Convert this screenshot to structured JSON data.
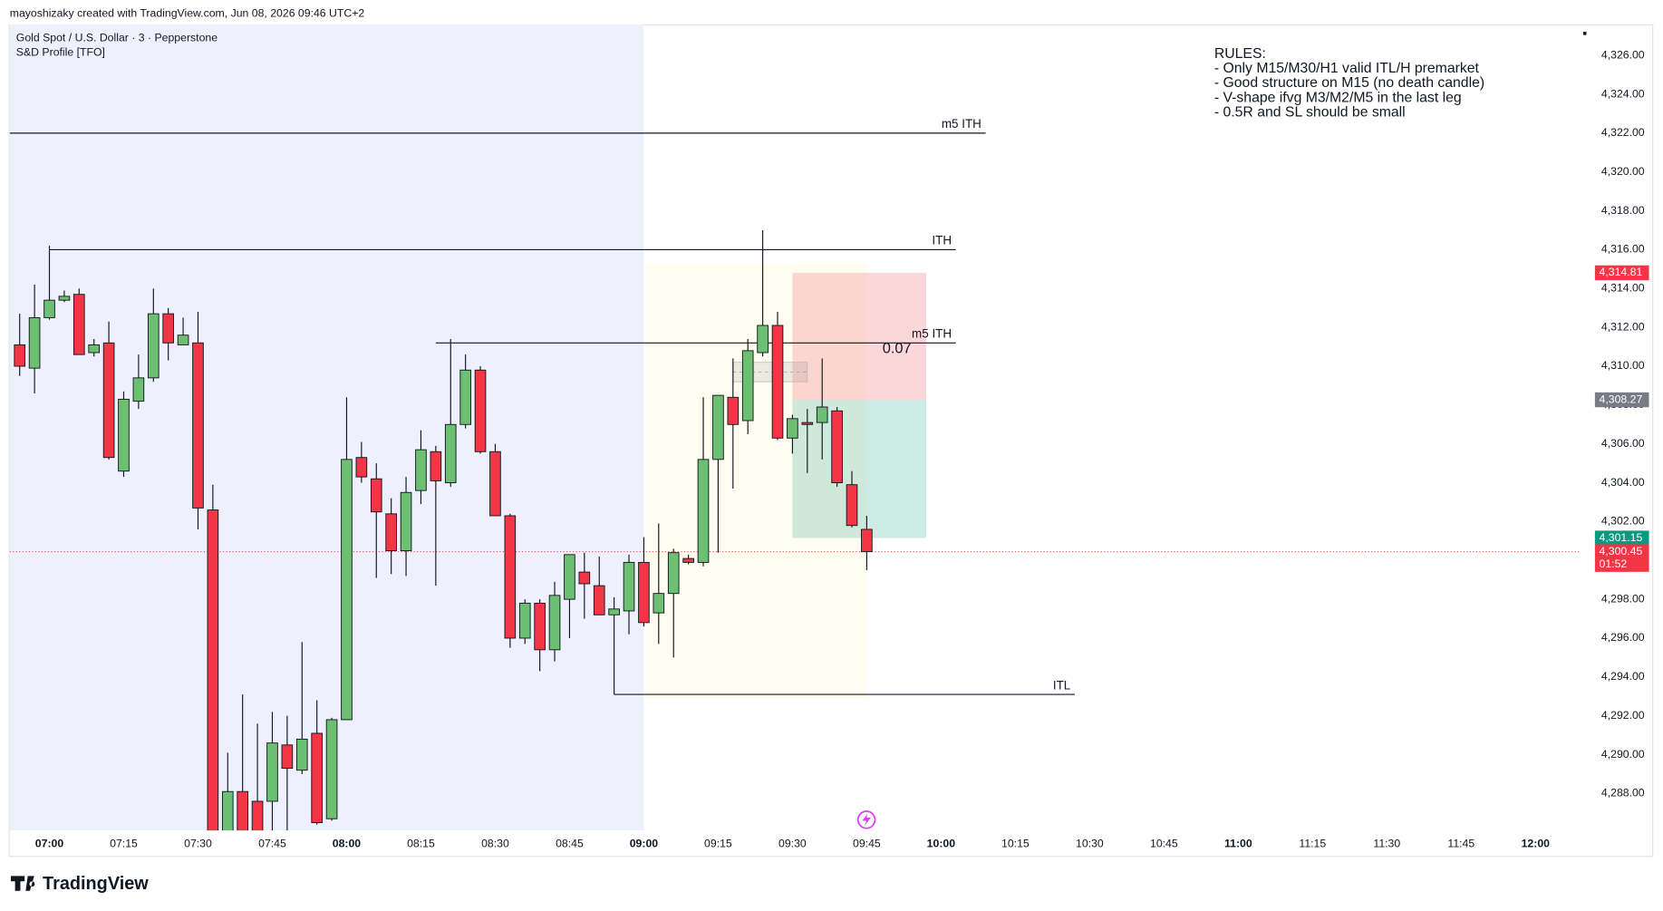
{
  "header": {
    "credit": "mayoshizaky created with TradingView.com, Jun 08, 2026 09:46 UTC+2",
    "symbol": "Gold Spot / U.S. Dollar · 3 · Pepperstone",
    "indicator": "S&D Profile [TFO]"
  },
  "footer": {
    "logo": "TradingView"
  },
  "chart_data": {
    "type": "candlestick",
    "x": [
      "06:54",
      "06:57",
      "07:00",
      "07:03",
      "07:06",
      "07:09",
      "07:12",
      "07:15",
      "07:18",
      "07:21",
      "07:24",
      "07:27",
      "07:30",
      "07:33",
      "07:36",
      "07:39",
      "07:42",
      "07:45",
      "07:48",
      "07:51",
      "07:54",
      "07:57",
      "08:00",
      "08:03",
      "08:06",
      "08:09",
      "08:12",
      "08:15",
      "08:18",
      "08:21",
      "08:24",
      "08:27",
      "08:30",
      "08:33",
      "08:36",
      "08:39",
      "08:42",
      "08:45",
      "08:48",
      "08:51",
      "08:54",
      "08:57",
      "09:00",
      "09:03",
      "09:06",
      "09:09",
      "09:12",
      "09:15",
      "09:18",
      "09:21",
      "09:24",
      "09:27",
      "09:30",
      "09:33",
      "09:36",
      "09:39",
      "09:42",
      "09:45"
    ],
    "open": [
      4311.1,
      4309.9,
      4312.5,
      4313.4,
      4313.7,
      4310.7,
      4311.2,
      4304.6,
      4308.2,
      4309.4,
      4312.7,
      4311.1,
      4311.2,
      4302.6,
      4285.6,
      4288.1,
      4287.6,
      4287.6,
      4290.5,
      4289.2,
      4291.1,
      4286.7,
      4291.8,
      4305.3,
      4304.2,
      4302.4,
      4300.5,
      4303.6,
      4305.6,
      4304.0,
      4307.0,
      4309.8,
      4305.6,
      4302.3,
      4296.0,
      4297.8,
      4295.4,
      4298.0,
      4299.4,
      4298.7,
      4297.2,
      4297.4,
      4299.9,
      4297.3,
      4298.3,
      4300.1,
      4299.9,
      4305.2,
      4308.4,
      4307.2,
      4310.7,
      4312.1,
      4306.3,
      4307.1,
      4307.1,
      4307.7,
      4303.9,
      4301.6
    ],
    "high": [
      4312.7,
      4314.2,
      4316.2,
      4313.9,
      4314.0,
      4311.4,
      4312.3,
      4308.7,
      4310.6,
      4314.0,
      4313.0,
      4312.5,
      4312.8,
      4303.9,
      4290.1,
      4293.1,
      4291.6,
      4292.2,
      4292.0,
      4295.8,
      4292.8,
      4291.9,
      4308.4,
      4306.1,
      4305.0,
      4303.2,
      4304.3,
      4306.7,
      4305.9,
      4311.4,
      4310.6,
      4310.0,
      4306.0,
      4302.4,
      4298.0,
      4298.0,
      4298.9,
      4300.3,
      4300.4,
      4300.2,
      4298.1,
      4300.3,
      4301.2,
      4301.9,
      4300.6,
      4300.3,
      4308.4,
      4308.5,
      4310.4,
      4311.4,
      4317.0,
      4312.8,
      4307.5,
      4307.8,
      4310.4,
      4307.9,
      4304.6,
      4302.3
    ],
    "low": [
      4309.5,
      4308.6,
      4312.4,
      4313.3,
      4310.6,
      4310.5,
      4305.2,
      4304.3,
      4307.8,
      4309.2,
      4310.3,
      4311.1,
      4301.6,
      4285.5,
      4285.5,
      4285.5,
      4285.9,
      4286.0,
      4286.0,
      4289.0,
      4286.4,
      4286.6,
      4291.8,
      4304.0,
      4299.1,
      4299.3,
      4299.2,
      4302.9,
      4298.7,
      4303.8,
      4306.8,
      4305.5,
      4302.3,
      4295.5,
      4295.7,
      4294.3,
      4294.8,
      4296.0,
      4297.0,
      4297.2,
      4293.1,
      4296.2,
      4296.6,
      4295.7,
      4295.0,
      4299.8,
      4299.7,
      4300.4,
      4303.7,
      4306.5,
      4310.5,
      4306.2,
      4305.5,
      4304.5,
      4305.2,
      4303.8,
      4301.7,
      4299.5
    ],
    "close": [
      4310.0,
      4312.5,
      4313.4,
      4313.6,
      4310.6,
      4311.1,
      4305.3,
      4308.3,
      4309.4,
      4312.7,
      4311.2,
      4311.6,
      4302.7,
      4285.7,
      4288.1,
      4285.6,
      4286.0,
      4290.6,
      4289.3,
      4290.8,
      4286.5,
      4291.8,
      4305.2,
      4304.3,
      4302.5,
      4300.5,
      4303.5,
      4305.7,
      4304.1,
      4307.0,
      4309.8,
      4305.6,
      4302.3,
      4296.0,
      4297.8,
      4295.4,
      4298.2,
      4300.3,
      4298.8,
      4297.2,
      4297.5,
      4299.9,
      4296.8,
      4298.3,
      4300.4,
      4299.9,
      4305.2,
      4308.5,
      4307.0,
      4310.8,
      4312.1,
      4306.3,
      4307.3,
      4307.0,
      4307.9,
      4304.0,
      4301.8,
      4300.45
    ],
    "up_color": "#6dbf72",
    "down_color": "#f23645",
    "xlim": [
      "06:52",
      "12:09"
    ],
    "xticks": [
      "07:00",
      "07:15",
      "07:30",
      "07:45",
      "08:00",
      "08:15",
      "08:30",
      "08:45",
      "09:00",
      "09:15",
      "09:30",
      "09:45",
      "10:00",
      "10:15",
      "10:30",
      "10:45",
      "11:00",
      "11:15",
      "11:30",
      "11:45",
      "12:00"
    ],
    "xticks_bold": [
      "07:00",
      "08:00",
      "09:00",
      "10:00",
      "11:00",
      "12:00"
    ],
    "ylim": [
      4286.1,
      4327.6
    ],
    "yticks": [
      {
        "value": 4288,
        "label": "4,288.00"
      },
      {
        "value": 4290,
        "label": "4,290.00"
      },
      {
        "value": 4292,
        "label": "4,292.00"
      },
      {
        "value": 4294,
        "label": "4,294.00"
      },
      {
        "value": 4296,
        "label": "4,296.00"
      },
      {
        "value": 4298,
        "label": "4,298.00"
      },
      {
        "value": 4300,
        "label": "4,300.00"
      },
      {
        "value": 4302,
        "label": "4,302.00"
      },
      {
        "value": 4304,
        "label": "4,304.00"
      },
      {
        "value": 4306,
        "label": "4,306.00"
      },
      {
        "value": 4308,
        "label": "4,308.00"
      },
      {
        "value": 4310,
        "label": "4,310.00"
      },
      {
        "value": 4312,
        "label": "4,312.00"
      },
      {
        "value": 4314,
        "label": "4,314.00"
      },
      {
        "value": 4316,
        "label": "4,316.00"
      },
      {
        "value": 4318,
        "label": "4,318.00"
      },
      {
        "value": 4320,
        "label": "4,320.00"
      },
      {
        "value": 4322,
        "label": "4,322.00"
      },
      {
        "value": 4324,
        "label": "4,324.00"
      },
      {
        "value": 4326,
        "label": "4,326.00"
      }
    ],
    "session": {
      "from": "06:52",
      "to": "09:00",
      "color": "#eef1fd"
    },
    "zone": {
      "from": "09:00",
      "to": "09:45",
      "top": 4315.3,
      "bottom": 4292.9,
      "color": "#fffdf0"
    },
    "fvg": {
      "from": "09:18",
      "to": "09:33",
      "top": 4310.2,
      "bottom": 4309.2
    },
    "levels": [
      {
        "label": "m5 ITH",
        "value": 4322.0,
        "from": "06:52",
        "to": "10:09"
      },
      {
        "label": "ITH",
        "value": 4316.0,
        "from": "07:00",
        "to": "10:03"
      },
      {
        "label": "m5 ITH",
        "value": 4311.2,
        "from": "08:18",
        "to": "10:03"
      },
      {
        "label": "ITL",
        "value": 4293.1,
        "from": "08:54",
        "to": "10:27"
      }
    ],
    "position": {
      "from": "09:30",
      "to": "09:57",
      "stop": 4314.81,
      "entry": 4308.27,
      "target": 4301.15,
      "label": "0.07"
    },
    "price_labels": [
      {
        "value": 4314.81,
        "label": "4,314.81",
        "color": "#f23645"
      },
      {
        "value": 4308.27,
        "label": "4,308.27",
        "color": "#787b86"
      },
      {
        "value": 4301.15,
        "label": "4,301.15",
        "color": "#089981"
      }
    ],
    "last_price": {
      "value": 4300.45,
      "label": "4,300.45",
      "countdown": "01:52",
      "color": "#f23645"
    },
    "rules": [
      "RULES:",
      "- Only M15/M30/H1 valid ITL/H premarket",
      "- Good structure on M15 (no death candle)",
      "- V-shape ifvg M3/M2/M5 in the last leg",
      "- 0.5R and SL should be small"
    ]
  }
}
